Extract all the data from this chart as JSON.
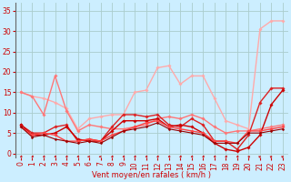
{
  "title": "",
  "xlabel": "Vent moyen/en rafales ( km/h )",
  "background_color": "#cceeff",
  "grid_color": "#aacccc",
  "x": [
    0,
    1,
    2,
    3,
    4,
    5,
    6,
    7,
    8,
    9,
    10,
    11,
    12,
    13,
    14,
    15,
    16,
    17,
    18,
    19,
    20,
    21,
    22,
    23
  ],
  "series": [
    {
      "y": [
        15.0,
        14.0,
        13.5,
        12.5,
        11.0,
        6.0,
        8.5,
        9.0,
        9.5,
        9.5,
        15.0,
        15.5,
        21.0,
        21.5,
        17.0,
        19.0,
        19.0,
        13.5,
        8.0,
        7.0,
        6.0,
        30.5,
        32.5,
        32.5
      ],
      "color": "#ffaaaa",
      "lw": 1.0,
      "marker": "D",
      "ms": 1.8
    },
    {
      "y": [
        15.0,
        14.0,
        9.5,
        19.0,
        10.5,
        5.5,
        7.0,
        6.5,
        6.0,
        6.0,
        6.5,
        7.0,
        8.5,
        9.0,
        8.5,
        9.5,
        8.5,
        6.5,
        5.0,
        5.5,
        5.5,
        6.0,
        6.5,
        7.0
      ],
      "color": "#ff7777",
      "lw": 1.0,
      "marker": "D",
      "ms": 1.8
    },
    {
      "y": [
        7.0,
        5.0,
        5.0,
        6.5,
        7.0,
        3.0,
        3.5,
        3.0,
        6.5,
        9.5,
        9.5,
        9.0,
        9.5,
        7.0,
        6.5,
        8.5,
        7.0,
        3.0,
        3.0,
        1.0,
        4.5,
        12.5,
        16.0,
        16.0
      ],
      "color": "#dd2222",
      "lw": 1.0,
      "marker": "D",
      "ms": 1.8
    },
    {
      "y": [
        7.0,
        4.5,
        4.5,
        5.0,
        6.5,
        3.5,
        3.0,
        3.0,
        5.5,
        8.0,
        8.0,
        8.0,
        8.5,
        6.5,
        7.0,
        6.5,
        5.0,
        2.5,
        1.0,
        0.5,
        1.5,
        4.5,
        12.0,
        15.5
      ],
      "color": "#cc0000",
      "lw": 1.0,
      "marker": "D",
      "ms": 1.8
    },
    {
      "y": [
        6.5,
        4.5,
        5.0,
        4.5,
        3.0,
        3.0,
        3.5,
        3.0,
        4.5,
        5.5,
        6.5,
        7.5,
        8.0,
        6.5,
        6.0,
        5.5,
        5.0,
        3.0,
        3.0,
        2.5,
        5.5,
        5.5,
        6.0,
        6.5
      ],
      "color": "#ff4444",
      "lw": 1.0,
      "marker": "D",
      "ms": 1.8
    },
    {
      "y": [
        6.5,
        4.0,
        4.5,
        3.5,
        3.0,
        2.5,
        3.0,
        2.5,
        4.0,
        5.5,
        6.0,
        6.5,
        7.5,
        6.0,
        5.5,
        5.0,
        4.5,
        2.5,
        2.5,
        2.5,
        5.0,
        5.0,
        5.5,
        6.0
      ],
      "color": "#990000",
      "lw": 0.8,
      "marker": "D",
      "ms": 1.5
    }
  ],
  "ylim": [
    -1,
    37
  ],
  "yticks": [
    0,
    5,
    10,
    15,
    20,
    25,
    30,
    35
  ],
  "xlim": [
    -0.5,
    23.5
  ],
  "xticks": [
    0,
    1,
    2,
    3,
    4,
    5,
    6,
    7,
    8,
    9,
    10,
    11,
    12,
    13,
    14,
    15,
    16,
    17,
    18,
    19,
    20,
    21,
    22,
    23
  ],
  "arrow_angles_deg": [
    225,
    225,
    225,
    225,
    225,
    225,
    270,
    270,
    225,
    225,
    225,
    225,
    225,
    225,
    225,
    225,
    225,
    225,
    225,
    225,
    315,
    45,
    45,
    45
  ]
}
